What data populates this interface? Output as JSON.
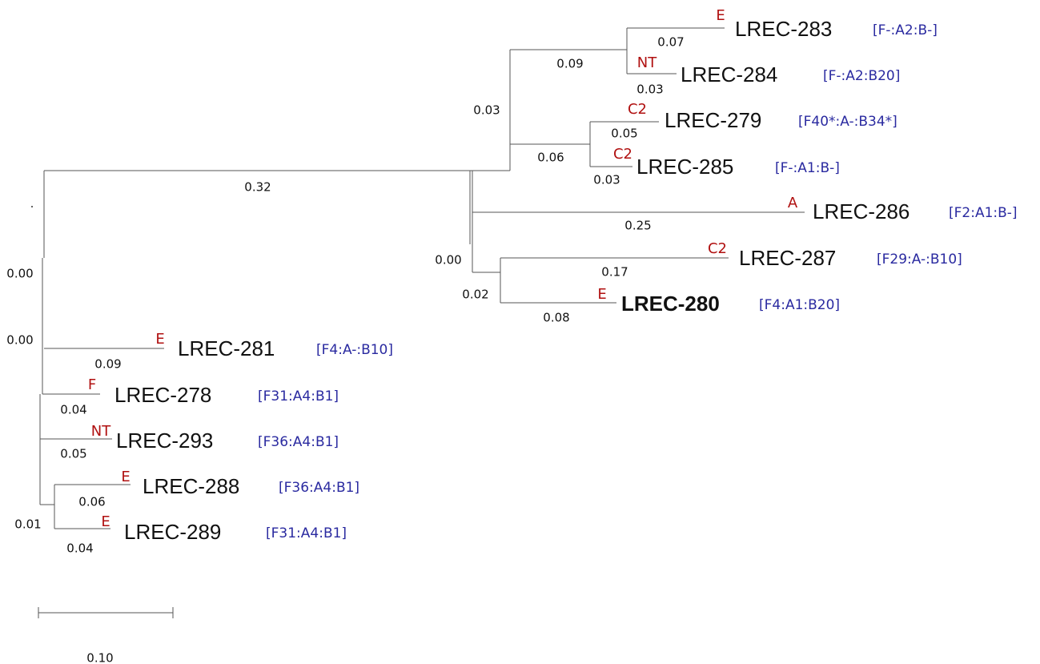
{
  "leaves": [
    {
      "name": "LREC-283",
      "group": "E",
      "profile": "[F-:A2:B-]",
      "branch": "0.07"
    },
    {
      "name": "LREC-284",
      "group": "NT",
      "profile": "[F-:A2:B20]",
      "branch": "0.03"
    },
    {
      "name": "LREC-279",
      "group": "C2",
      "profile": "[F40*:A-:B34*]",
      "branch": "0.05"
    },
    {
      "name": "LREC-285",
      "group": "C2",
      "profile": "[F-:A1:B-]",
      "branch": "0.03"
    },
    {
      "name": "LREC-286",
      "group": "A",
      "profile": "[F2:A1:B-]",
      "branch": "0.25"
    },
    {
      "name": "LREC-287",
      "group": "C2",
      "profile": "[F29:A-:B10]",
      "branch": "0.17"
    },
    {
      "name": "LREC-280",
      "group": "E",
      "profile": "[F4:A1:B20]",
      "branch": "0.08"
    },
    {
      "name": "LREC-281",
      "group": "E",
      "profile": "[F4:A-:B10]",
      "branch": "0.09"
    },
    {
      "name": "LREC-278",
      "group": "F",
      "profile": "[F31:A4:B1]",
      "branch": "0.04"
    },
    {
      "name": "LREC-293",
      "group": "NT",
      "profile": "[F36:A4:B1]",
      "branch": "0.05"
    },
    {
      "name": "LREC-288",
      "group": "E",
      "profile": "[F36:A4:B1]",
      "branch": "0.06"
    },
    {
      "name": "LREC-289",
      "group": "E",
      "profile": "[F31:A4:B1]",
      "branch": "0.04"
    }
  ],
  "internal_branches": [
    "0.09",
    "0.03",
    "0.06",
    "0.32",
    "0.00",
    "0.02",
    "0.00",
    "0.00",
    "0.01"
  ],
  "scale_bar": {
    "label": "0.10"
  }
}
